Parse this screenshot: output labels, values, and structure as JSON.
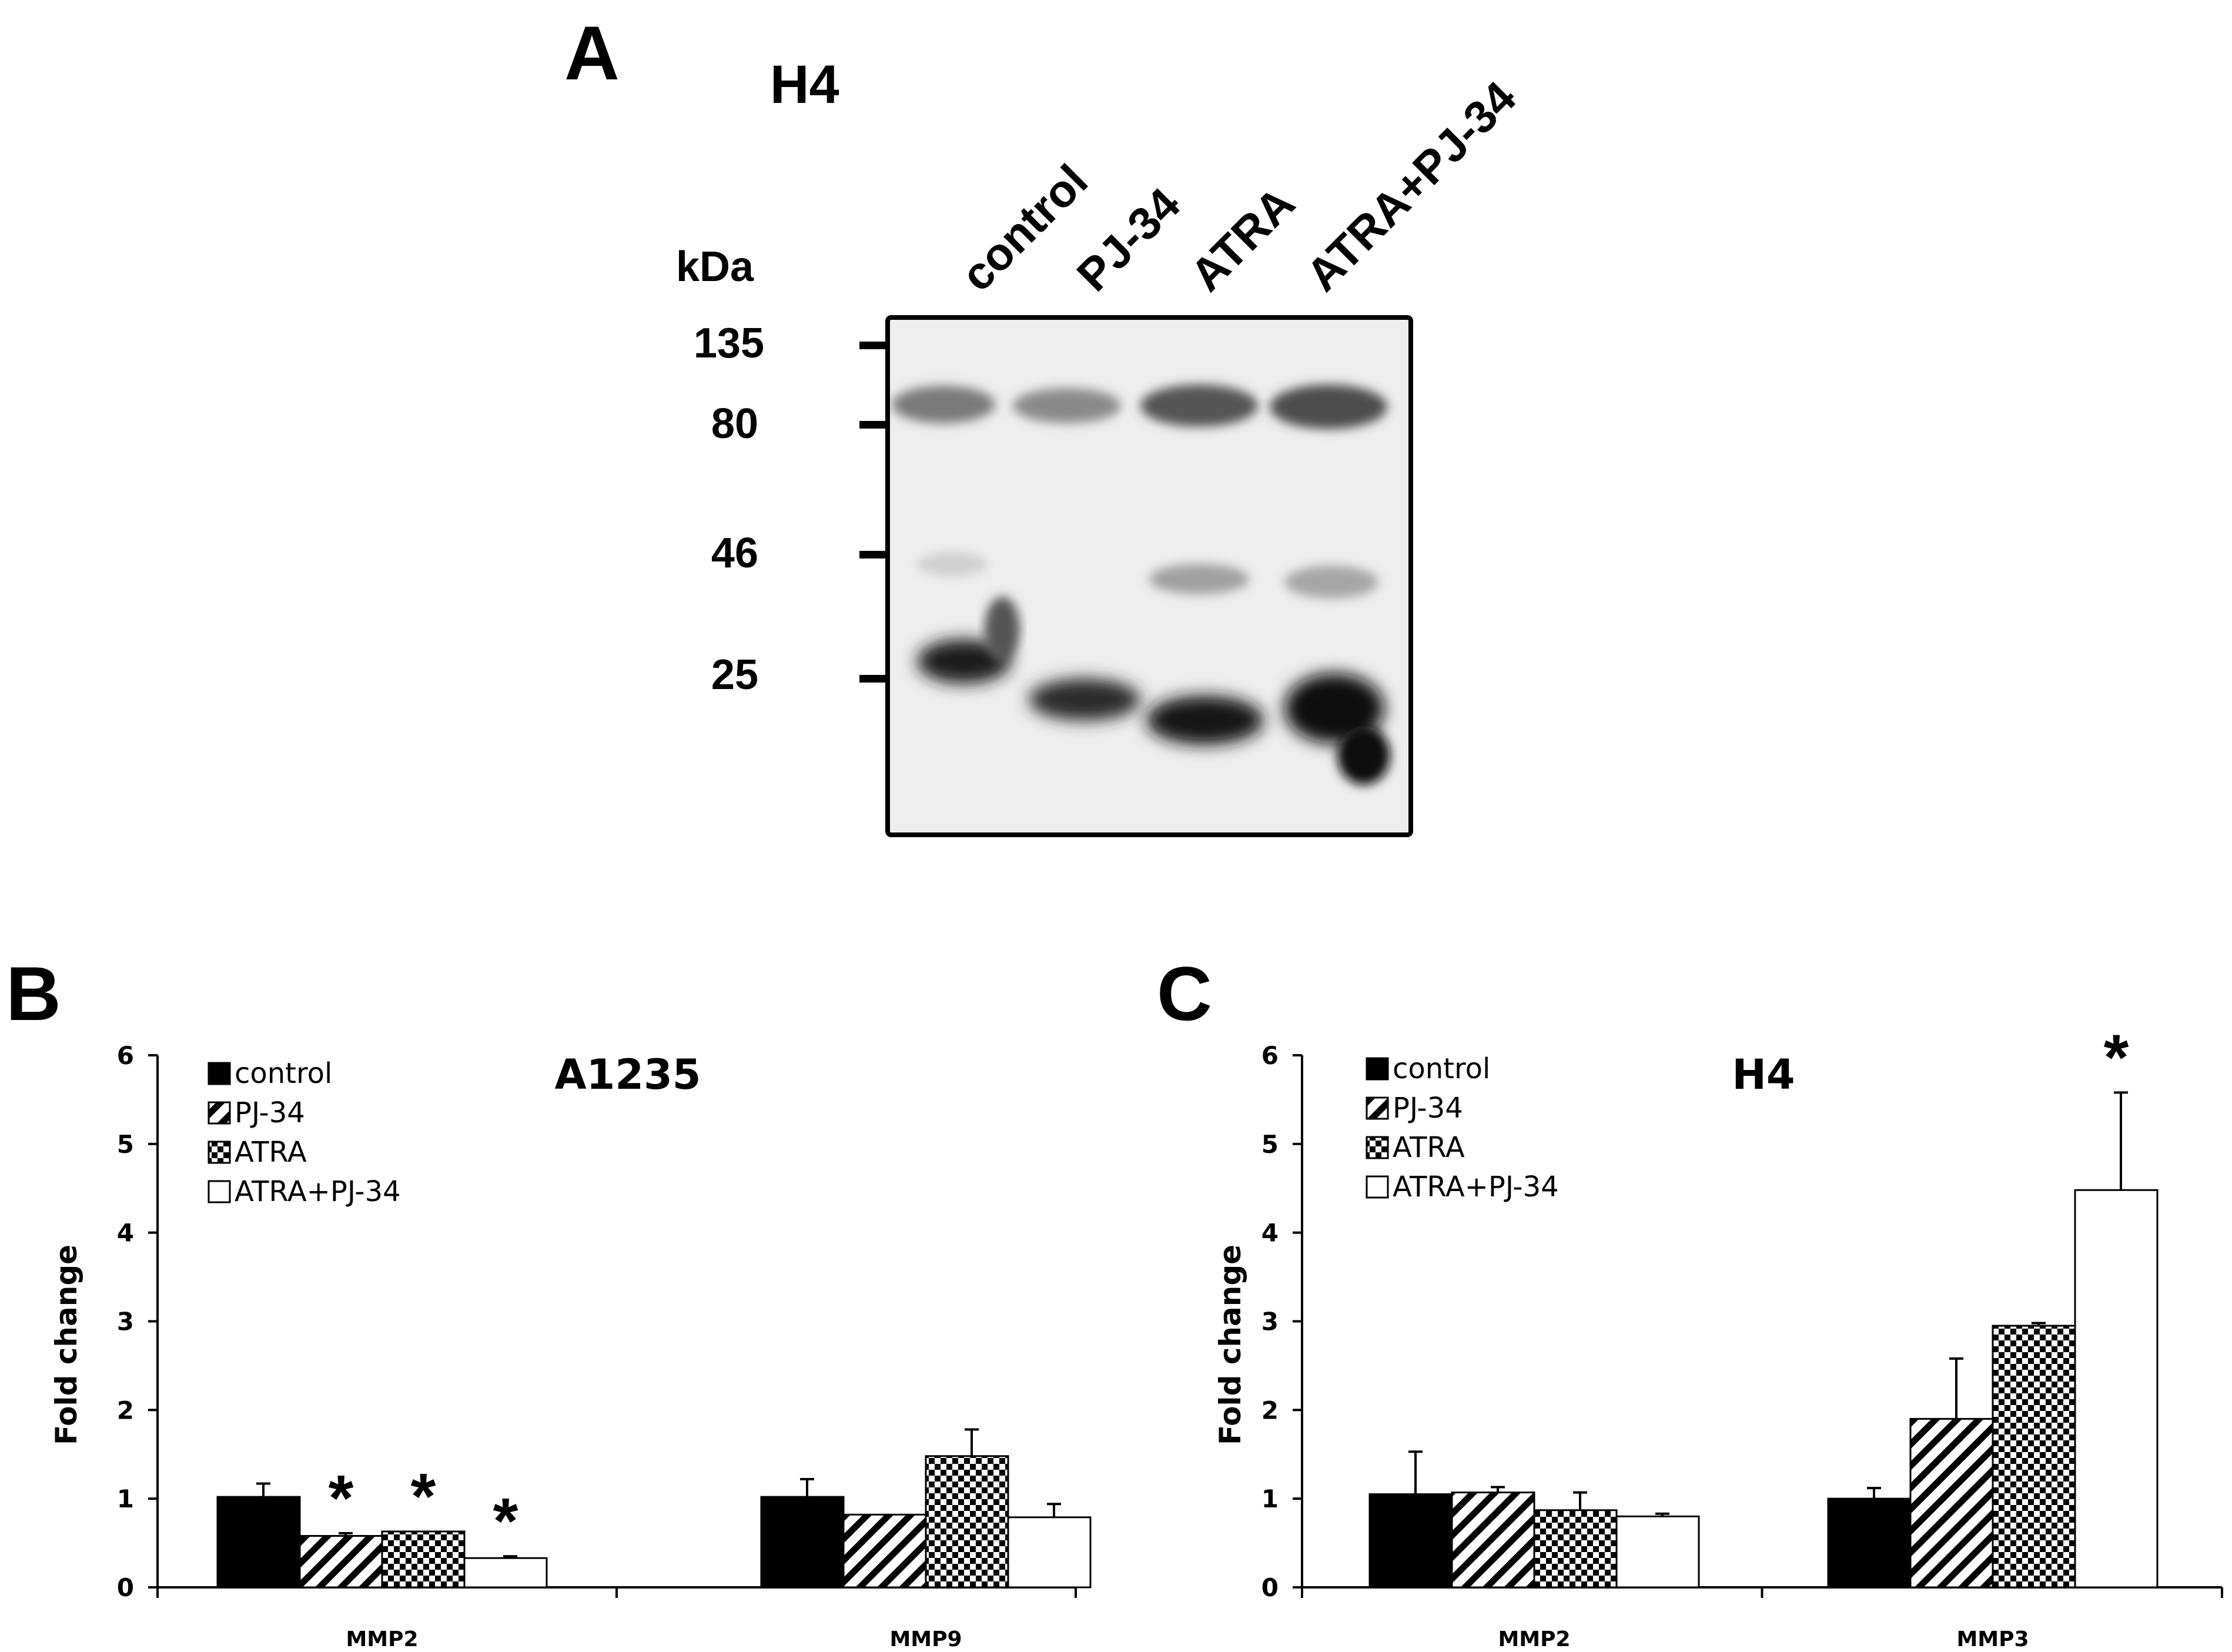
{
  "panel_a": {
    "letter": "A",
    "title": "H4",
    "marker_unit": "kDa",
    "markers": [
      "135",
      "80",
      "46",
      "25"
    ],
    "lanes": [
      "control",
      "PJ-34",
      "ATRA",
      "ATRA+PJ-34"
    ]
  },
  "chart_data": [
    {
      "panel": "B",
      "type": "bar",
      "title": "A1235",
      "xlabel": "",
      "ylabel": "Fold change",
      "ylim": [
        0,
        6
      ],
      "yticks": [
        0,
        1,
        2,
        3,
        4,
        5,
        6
      ],
      "categories": [
        "MMP2",
        "MMP9"
      ],
      "series": [
        {
          "name": "control",
          "fill": "solid",
          "values": [
            1.02,
            1.02
          ],
          "errors": [
            0.15,
            0.2
          ]
        },
        {
          "name": "PJ-34",
          "fill": "diagonal",
          "values": [
            0.58,
            0.82
          ],
          "errors": [
            0.03,
            0.0
          ]
        },
        {
          "name": "ATRA",
          "fill": "checker",
          "values": [
            0.63,
            1.48
          ],
          "errors": [
            0.0,
            0.3
          ]
        },
        {
          "name": "ATRA+PJ-34",
          "fill": "white",
          "values": [
            0.33,
            0.79
          ],
          "errors": [
            0.02,
            0.15
          ]
        }
      ],
      "significance": [
        {
          "category": "MMP2",
          "series": "PJ-34",
          "label": "*"
        },
        {
          "category": "MMP2",
          "series": "ATRA",
          "label": "*"
        },
        {
          "category": "MMP2",
          "series": "ATRA+PJ-34",
          "label": "*"
        }
      ],
      "legend_position": "top-left"
    },
    {
      "panel": "C",
      "type": "bar",
      "title": "H4",
      "xlabel": "",
      "ylabel": "Fold change",
      "ylim": [
        0,
        6
      ],
      "yticks": [
        0,
        1,
        2,
        3,
        4,
        5,
        6
      ],
      "categories": [
        "MMP2",
        "MMP3"
      ],
      "series": [
        {
          "name": "control",
          "fill": "solid",
          "values": [
            1.05,
            1.0
          ],
          "errors": [
            0.48,
            0.12
          ]
        },
        {
          "name": "PJ-34",
          "fill": "diagonal",
          "values": [
            1.07,
            1.9
          ],
          "errors": [
            0.06,
            0.68
          ]
        },
        {
          "name": "ATRA",
          "fill": "checker",
          "values": [
            0.87,
            2.95
          ],
          "errors": [
            0.2,
            0.03
          ]
        },
        {
          "name": "ATRA+PJ-34",
          "fill": "white",
          "values": [
            0.8,
            4.48
          ],
          "errors": [
            0.03,
            1.1
          ]
        }
      ],
      "significance": [
        {
          "category": "MMP3",
          "series": "ATRA+PJ-34",
          "label": "*"
        }
      ],
      "legend_position": "top-left"
    }
  ]
}
